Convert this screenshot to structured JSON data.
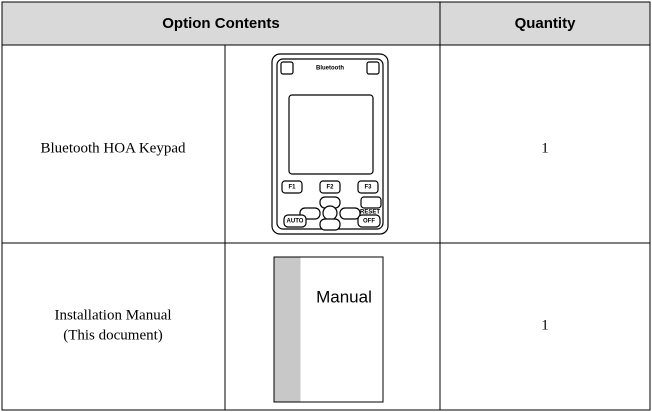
{
  "table": {
    "header": [
      "Option Contents",
      "Quantity"
    ],
    "rows": [
      {
        "name": "Bluetooth HOA Keypad",
        "quantity": 1,
        "image_labels": [
          "Bluetooth",
          "F1",
          "F2",
          "F3",
          "RESET",
          "AUTO",
          "OFF"
        ]
      },
      {
        "name": [
          "Installation Manual",
          "(This document)"
        ],
        "quantity": 1,
        "image_labels": [
          "Manual"
        ]
      }
    ]
  }
}
